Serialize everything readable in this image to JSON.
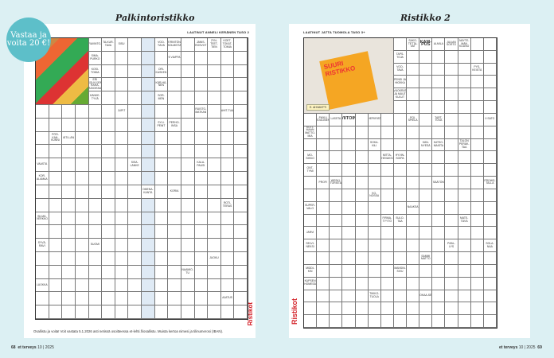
{
  "left_page": {
    "title": "Palkintoristikko",
    "byline": "LAATINUT ANNELI KERÄNEN TASO 2",
    "badge": "Vastaa ja voita 20 €!",
    "clues": [
      "RAVINTO-",
      "TA-KUR-TAVA",
      "SISU",
      "VOO-TÄVÄ",
      "PERINTÖNÄ SOLMISTA",
      "JÄNIS-ROSVOT",
      "ZYN-TEET-TIEN",
      "KOET-TOKAT-TOMIA",
      "SIMA-PURKO",
      "€ VIAPPA",
      "KOSI-TOMIA",
      "ORI-KASKEN",
      "ERI SOLVUJEN RAHA-ASIOISSA",
      "KÄR-HÄ-NEN",
      "KÄNKE-TYVÄ",
      "SOR-MEN",
      "JUPIT",
      "RUISTO-MATKAN",
      "AHIT-TUA",
      "SYLI-PENIT",
      "PERHO-INSA",
      "PÖÖ-KAN-KUNNI",
      "ÄITI-LÄN",
      "VAASTA",
      "SISA-LÄNKE",
      "KALA-PAUSI",
      "KOR-ALAMAA",
      "OMENA-KANTA",
      "KORIA",
      "ROTI-TERAS",
      "SILMÄ-VERKKO",
      "SYVÄ-RAVI",
      "SUOMI",
      "AJATUS",
      "NAAMIO-TU",
      "JUOKU",
      "LUOKKA"
    ],
    "footer_note": "Osallistu ja voita! Voit vastata 5.1.2026 asti netissä osoitteessa et-lehti.fi/osallistu. Muista kertoa nimesi ja tilinumerosi (IBAN).",
    "page_number": "68",
    "magazine": "et terveys",
    "issue": "10 | 2025"
  },
  "right_page": {
    "title": "Ristikko 2",
    "byline": "LAATINUT JATTA TUOMOLA TASO 3+",
    "photo_caption": "E. AHVANTTI",
    "cover_text": "SUURI RISTIKKO",
    "clues": [
      "SAKO-TETTA-VAT",
      "KAM-PUS",
      "ALMILA",
      "JULIAN SORTO",
      "NÄYTE-MÄN KUUNO",
      "TAPS-TOJA",
      "VOO-TAVA",
      "PYS-KEISTÄ",
      "PENSI JA HIOKKA",
      "VUOKRAT JA MUUT KULUT",
      "PIKKU TOOLINEN",
      "LASSTA",
      "VIITOIN",
      "AIHEPIIRISTÄ",
      "POI-SPIELÄ",
      "TART-TOVA",
      "II SATO",
      "KOTI-MAAN MATTO-MIA",
      "SOKA-KILI",
      "KÄN-NYESÄ",
      "KATSO-MAISTA",
      "TALON PERÄK-TAA",
      "MO-SIKKO",
      "MITTA-HEVAKSI",
      "HYVIN-SOIPA",
      "ONT-TYMI",
      "PROFI",
      "WESKI-TORISTA",
      "SÄÄTÖN",
      "PROHIS-TALLA",
      "KO-NOSSA",
      "SUPER-VALO",
      "NAAKSA",
      "FIRMA-TYYTÖ",
      "SULO-TAA",
      "MATE-TÄVÄ",
      "JÄRVI",
      "SELVI-NEKSI",
      "PÄÄL-LYS",
      "SOLA-NAA",
      "SAMMI MATTO",
      "MIDDI-KIN",
      "MANSIN-SIVU",
      "KUPSEN HOMESÄ",
      "TIIKKO-TUOLA",
      "OKAA-SE"
    ],
    "logo": "Ristikot",
    "page_number": "69",
    "magazine": "et terveys",
    "issue": "10 | 2025"
  },
  "colors": {
    "background": "#dcf0f3",
    "badge": "#5dbfc9",
    "logo_red": "#d4232a"
  }
}
